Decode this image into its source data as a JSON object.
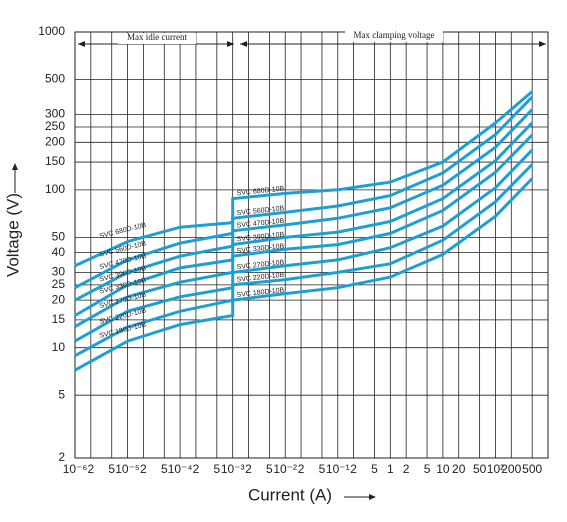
{
  "chart_data": {
    "type": "line",
    "annotations": [
      "Max idle current",
      "Max clamping voltage"
    ],
    "xlabel": "Current (A)",
    "ylabel": "Voltage (V)",
    "x": [
      1e-06,
      1e-05,
      0.0001,
      0.001,
      0.001,
      0.01,
      0.1,
      1,
      10,
      100,
      500
    ],
    "series": [
      {
        "name": "SVC 680D-10B",
        "color": "#1e9fd4",
        "values": [
          33,
          47,
          58,
          62,
          88,
          95,
          100,
          112,
          150,
          265,
          420
        ]
      },
      {
        "name": "SVC 560D-10B",
        "color": "#1e9fd4",
        "values": [
          24,
          36,
          46,
          53,
          66,
          72,
          79,
          92,
          128,
          224,
          388
        ]
      },
      {
        "name": "SVC 470D-10B",
        "color": "#1e9fd4",
        "values": [
          20,
          30,
          38,
          44,
          55,
          60,
          66,
          77,
          107,
          186,
          323
        ]
      },
      {
        "name": "SVC 390D-10B",
        "color": "#1e9fd4",
        "values": [
          16,
          25,
          32,
          36,
          45,
          50,
          54,
          63,
          88,
          153,
          266
        ]
      },
      {
        "name": "SVC 330D-10B",
        "color": "#1e9fd4",
        "values": [
          13.6,
          21,
          26,
          30,
          38,
          42,
          45,
          53,
          74,
          129,
          223
        ]
      },
      {
        "name": "SVC 270D-10B",
        "color": "#1e9fd4",
        "values": [
          11,
          17,
          21,
          24,
          30,
          33,
          36,
          43,
          59,
          103,
          179
        ]
      },
      {
        "name": "SVC 220D-10B",
        "color": "#1e9fd4",
        "values": [
          8.9,
          13.5,
          17,
          20,
          25,
          27,
          30,
          34,
          48,
          84,
          145
        ]
      },
      {
        "name": "SVC 180D-10B",
        "color": "#1e9fd4",
        "values": [
          7.2,
          11,
          14,
          16,
          20,
          22,
          24,
          28,
          39,
          68,
          118
        ]
      }
    ],
    "xlim": [
      1e-06,
      1000
    ],
    "ylim": [
      2,
      1000
    ],
    "xlog": true,
    "ylog": true,
    "grid": true,
    "xticks": [
      {
        "value": 1e-06,
        "label": "10⁻⁶"
      },
      {
        "value": 2e-06,
        "label": "2"
      },
      {
        "value": 5e-06,
        "label": "5"
      },
      {
        "value": 1e-05,
        "label": "10⁻⁵"
      },
      {
        "value": 2e-05,
        "label": "2"
      },
      {
        "value": 5e-05,
        "label": "5"
      },
      {
        "value": 0.0001,
        "label": "10⁻⁴"
      },
      {
        "value": 0.0002,
        "label": "2"
      },
      {
        "value": 0.0005,
        "label": "5"
      },
      {
        "value": 0.001,
        "label": "10⁻³"
      },
      {
        "value": 0.002,
        "label": "2"
      },
      {
        "value": 0.005,
        "label": "5"
      },
      {
        "value": 0.01,
        "label": "10⁻²"
      },
      {
        "value": 0.02,
        "label": "2"
      },
      {
        "value": 0.05,
        "label": "5"
      },
      {
        "value": 0.1,
        "label": "10⁻¹"
      },
      {
        "value": 0.2,
        "label": "2"
      },
      {
        "value": 0.5,
        "label": "5"
      },
      1,
      2,
      5,
      10,
      20,
      50,
      {
        "value": 100,
        "label": "10²"
      },
      200,
      500
    ],
    "yticks": [
      2,
      5,
      10,
      15,
      20,
      25,
      30,
      40,
      50,
      100,
      150,
      200,
      250,
      300,
      500,
      1000
    ]
  }
}
